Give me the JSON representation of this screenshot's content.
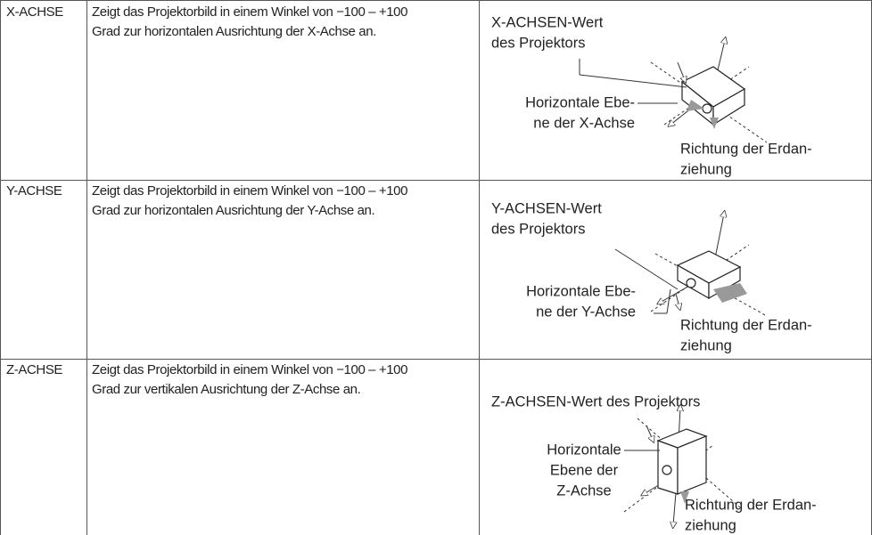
{
  "table": {
    "rows": [
      {
        "label": "X-ACHSE",
        "description": [
          "Zeigt das Projektorbild in einem Winkel von −100 – +100",
          "Grad zur horizontalen Ausrichtung der X-Achse an."
        ],
        "diagram": {
          "value_label": [
            "X-ACHSEN-Wert",
            "des Projektors"
          ],
          "plane_label": [
            "Horizontale Ebe-",
            "ne der X-Achse"
          ],
          "gravity_label": [
            "Richtung der Erdan-",
            "ziehung"
          ]
        }
      },
      {
        "label": "Y-ACHSE",
        "description": [
          "Zeigt das Projektorbild in einem Winkel von −100 – +100",
          "Grad zur horizontalen Ausrichtung der Y-Achse an."
        ],
        "diagram": {
          "value_label": [
            "Y-ACHSEN-Wert",
            "des Projektors"
          ],
          "plane_label": [
            "Horizontale Ebe-",
            "ne der Y-Achse"
          ],
          "gravity_label": [
            "Richtung der Erdan-",
            "ziehung"
          ]
        }
      },
      {
        "label": "Z-ACHSE",
        "description": [
          "Zeigt das Projektorbild in einem Winkel von −100 – +100",
          "Grad zur vertikalen Ausrichtung der Z-Achse an."
        ],
        "diagram": {
          "value_label": [
            "Z-ACHSEN-Wert des Projektors"
          ],
          "plane_label": [
            "Horizontale",
            "Ebene der",
            "Z-Achse"
          ],
          "gravity_label": [
            "Richtung der Erdan-",
            "ziehung"
          ]
        }
      }
    ]
  }
}
